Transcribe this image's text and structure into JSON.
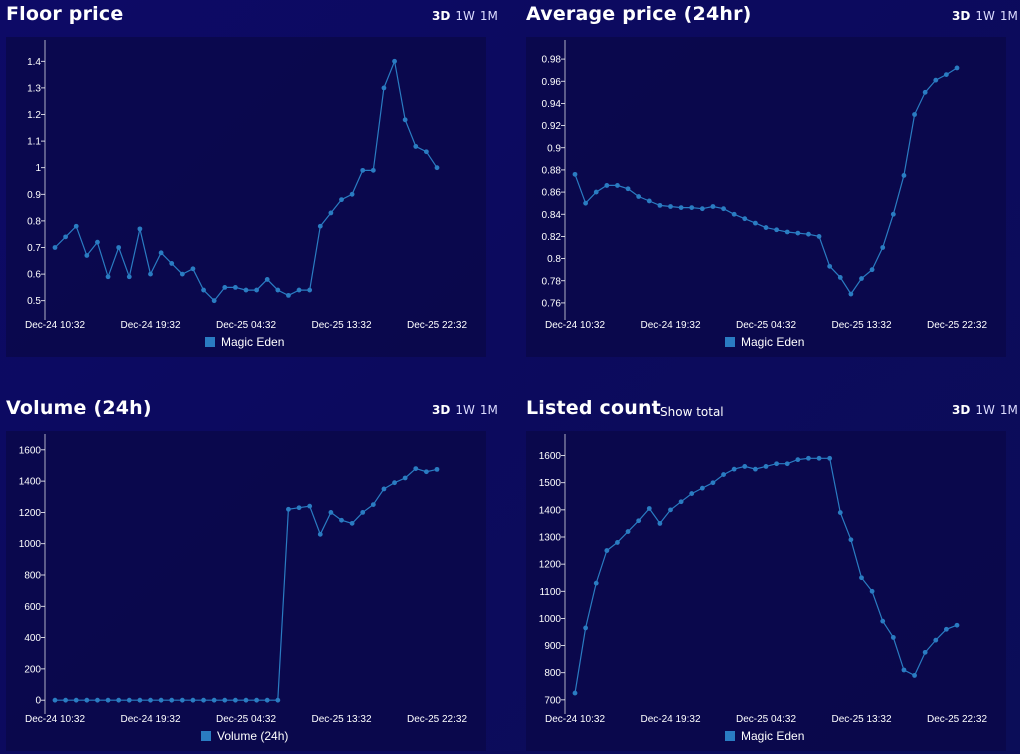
{
  "style": {
    "line_color": "#2a7cc2",
    "text_color": "#ffffff"
  },
  "timeframes": [
    "3D",
    "1W",
    "1M"
  ],
  "active_timeframe": "3D",
  "charts": {
    "floor": {
      "title": "Floor price"
    },
    "avg": {
      "title": "Average price (24hr)"
    },
    "volume": {
      "title": "Volume (24h)"
    },
    "listed": {
      "title": "Listed count",
      "extra_label": "Show total"
    }
  },
  "chart_data": [
    {
      "type": "line",
      "title": "Floor price",
      "xlabel": "",
      "ylabel": "",
      "x_tick_labels": [
        "Dec-24 10:32",
        "Dec-24 19:32",
        "Dec-25 04:32",
        "Dec-25 13:32",
        "Dec-25 22:32"
      ],
      "y_ticks": [
        0.5,
        0.6,
        0.7,
        0.8,
        0.9,
        1,
        1.1,
        1.2,
        1.3,
        1.4
      ],
      "ylim": [
        0.45,
        1.45
      ],
      "series": [
        {
          "name": "Magic Eden",
          "values": [
            0.7,
            0.74,
            0.78,
            0.67,
            0.72,
            0.59,
            0.7,
            0.59,
            0.77,
            0.6,
            0.68,
            0.64,
            0.6,
            0.62,
            0.54,
            0.5,
            0.55,
            0.55,
            0.54,
            0.54,
            0.58,
            0.54,
            0.52,
            0.54,
            0.54,
            0.78,
            0.83,
            0.88,
            0.9,
            0.99,
            0.99,
            1.3,
            1.4,
            1.18,
            1.08,
            1.06,
            1.0
          ]
        }
      ],
      "legend": "bottom"
    },
    {
      "type": "line",
      "title": "Average price (24hr)",
      "xlabel": "",
      "ylabel": "",
      "x_tick_labels": [
        "Dec-24 10:32",
        "Dec-24 19:32",
        "Dec-25 04:32",
        "Dec-25 13:32",
        "Dec-25 22:32"
      ],
      "y_ticks": [
        0.76,
        0.78,
        0.8,
        0.82,
        0.84,
        0.86,
        0.88,
        0.9,
        0.92,
        0.94,
        0.96,
        0.98
      ],
      "ylim": [
        0.75,
        0.99
      ],
      "series": [
        {
          "name": "Magic Eden",
          "values": [
            0.876,
            0.85,
            0.86,
            0.866,
            0.866,
            0.863,
            0.856,
            0.852,
            0.848,
            0.847,
            0.846,
            0.846,
            0.845,
            0.847,
            0.845,
            0.84,
            0.836,
            0.832,
            0.828,
            0.826,
            0.824,
            0.823,
            0.822,
            0.82,
            0.793,
            0.783,
            0.768,
            0.782,
            0.79,
            0.81,
            0.84,
            0.875,
            0.93,
            0.95,
            0.961,
            0.966,
            0.972
          ]
        }
      ],
      "legend": "bottom"
    },
    {
      "type": "line",
      "title": "Volume (24h)",
      "xlabel": "",
      "ylabel": "",
      "x_tick_labels": [
        "Dec-24 10:32",
        "Dec-24 19:32",
        "Dec-25 04:32",
        "Dec-25 13:32",
        "Dec-25 22:32"
      ],
      "y_ticks": [
        0,
        200,
        400,
        600,
        800,
        1000,
        1200,
        1400,
        1600
      ],
      "ylim": [
        -50,
        1650
      ],
      "series": [
        {
          "name": "Volume (24h)",
          "values": [
            0,
            0,
            0,
            0,
            0,
            0,
            0,
            0,
            0,
            0,
            0,
            0,
            0,
            0,
            0,
            0,
            0,
            0,
            0,
            0,
            0,
            0,
            1220,
            1230,
            1240,
            1060,
            1200,
            1150,
            1130,
            1200,
            1250,
            1350,
            1390,
            1420,
            1480,
            1460,
            1475
          ]
        }
      ],
      "legend": "bottom"
    },
    {
      "type": "line",
      "title": "Listed count",
      "xlabel": "",
      "ylabel": "",
      "x_tick_labels": [
        "Dec-24 10:32",
        "Dec-24 19:32",
        "Dec-25 04:32",
        "Dec-25 13:32",
        "Dec-25 22:32"
      ],
      "y_ticks": [
        700,
        800,
        900,
        1000,
        1100,
        1200,
        1300,
        1400,
        1500,
        1600
      ],
      "ylim": [
        670,
        1650
      ],
      "series": [
        {
          "name": "Magic Eden",
          "values": [
            725,
            965,
            1130,
            1250,
            1280,
            1320,
            1360,
            1405,
            1350,
            1400,
            1430,
            1460,
            1480,
            1500,
            1530,
            1550,
            1560,
            1550,
            1560,
            1570,
            1570,
            1585,
            1590,
            1590,
            1590,
            1390,
            1290,
            1150,
            1100,
            990,
            930,
            810,
            790,
            875,
            920,
            960,
            975
          ]
        }
      ],
      "legend": "bottom"
    }
  ]
}
